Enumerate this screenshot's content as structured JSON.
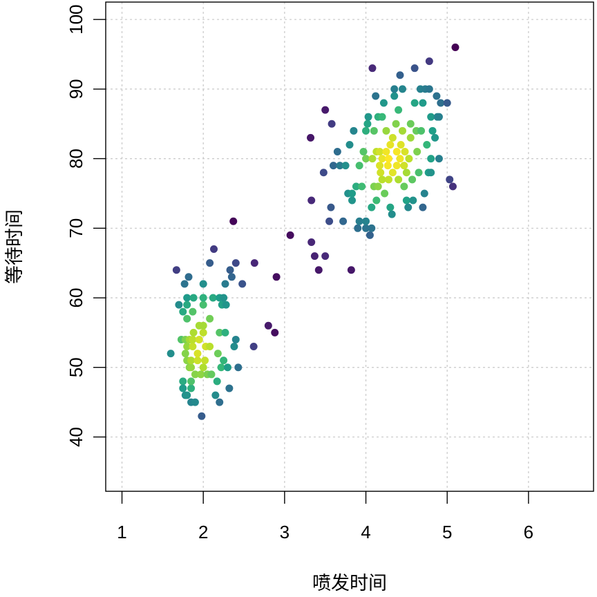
{
  "chart_data": {
    "type": "scatter",
    "title": "",
    "xlabel": "喷发时间",
    "ylabel": "等待时间",
    "xlim": [
      0.8,
      6.8
    ],
    "ylim": [
      32.2,
      102.5
    ],
    "xticks": [
      "1",
      "2",
      "3",
      "4",
      "5",
      "6"
    ],
    "yticks": [
      "40",
      "50",
      "60",
      "70",
      "80",
      "90",
      "100"
    ],
    "xtick_values": [
      1,
      2,
      3,
      4,
      5,
      6
    ],
    "ytick_values": [
      40,
      50,
      60,
      70,
      80,
      90,
      100
    ],
    "grid": true,
    "colormap": "viridis (by point density)",
    "colors": {
      "low_density": "#440154",
      "mid_density": "#21908C",
      "high_density": "#FDE725"
    },
    "points": [
      [
        1.6,
        52
      ],
      [
        1.67,
        64
      ],
      [
        1.7,
        59
      ],
      [
        1.73,
        54
      ],
      [
        1.75,
        48
      ],
      [
        1.75,
        47
      ],
      [
        1.75,
        58
      ],
      [
        1.77,
        62
      ],
      [
        1.78,
        46
      ],
      [
        1.78,
        54
      ],
      [
        1.78,
        52
      ],
      [
        1.8,
        60
      ],
      [
        1.8,
        59
      ],
      [
        1.8,
        57
      ],
      [
        1.8,
        53
      ],
      [
        1.8,
        51
      ],
      [
        1.8,
        46
      ],
      [
        1.82,
        63
      ],
      [
        1.83,
        54
      ],
      [
        1.83,
        50
      ],
      [
        1.85,
        45
      ],
      [
        1.85,
        47
      ],
      [
        1.85,
        48
      ],
      [
        1.85,
        50
      ],
      [
        1.85,
        51
      ],
      [
        1.87,
        53
      ],
      [
        1.87,
        54
      ],
      [
        1.87,
        58
      ],
      [
        1.88,
        55
      ],
      [
        1.88,
        60
      ],
      [
        1.9,
        45
      ],
      [
        1.9,
        49
      ],
      [
        1.93,
        51
      ],
      [
        1.93,
        52
      ],
      [
        1.95,
        54
      ],
      [
        1.95,
        56
      ],
      [
        1.97,
        49
      ],
      [
        1.98,
        43
      ],
      [
        2.0,
        50
      ],
      [
        2.0,
        55
      ],
      [
        2.0,
        56
      ],
      [
        2.0,
        59
      ],
      [
        2.0,
        62
      ],
      [
        2.0,
        60
      ],
      [
        2.02,
        51
      ],
      [
        2.03,
        53
      ],
      [
        2.05,
        49
      ],
      [
        2.08,
        53
      ],
      [
        2.08,
        57
      ],
      [
        2.08,
        65
      ],
      [
        2.1,
        49
      ],
      [
        2.12,
        60
      ],
      [
        2.13,
        67
      ],
      [
        2.15,
        46
      ],
      [
        2.17,
        48
      ],
      [
        2.18,
        52
      ],
      [
        2.2,
        45
      ],
      [
        2.2,
        55
      ],
      [
        2.2,
        60
      ],
      [
        2.22,
        50
      ],
      [
        2.23,
        59
      ],
      [
        2.25,
        51
      ],
      [
        2.25,
        60
      ],
      [
        2.27,
        55
      ],
      [
        2.27,
        62
      ],
      [
        2.28,
        59
      ],
      [
        2.3,
        50
      ],
      [
        2.32,
        47
      ],
      [
        2.33,
        64
      ],
      [
        2.35,
        63
      ],
      [
        2.37,
        71
      ],
      [
        2.38,
        53
      ],
      [
        2.4,
        54
      ],
      [
        2.4,
        65
      ],
      [
        2.43,
        50
      ],
      [
        2.48,
        62
      ],
      [
        2.62,
        53
      ],
      [
        2.63,
        65
      ],
      [
        2.8,
        56
      ],
      [
        2.88,
        55
      ],
      [
        2.9,
        63
      ],
      [
        3.07,
        69
      ],
      [
        3.32,
        83
      ],
      [
        3.33,
        68
      ],
      [
        3.33,
        74
      ],
      [
        3.37,
        66
      ],
      [
        3.42,
        64
      ],
      [
        3.48,
        78
      ],
      [
        3.5,
        66
      ],
      [
        3.5,
        87
      ],
      [
        3.55,
        71
      ],
      [
        3.57,
        73
      ],
      [
        3.58,
        85
      ],
      [
        3.6,
        79
      ],
      [
        3.65,
        81
      ],
      [
        3.68,
        79
      ],
      [
        3.72,
        71
      ],
      [
        3.75,
        79
      ],
      [
        3.78,
        75
      ],
      [
        3.8,
        82
      ],
      [
        3.82,
        64
      ],
      [
        3.83,
        74
      ],
      [
        3.83,
        75
      ],
      [
        3.85,
        84
      ],
      [
        3.88,
        76
      ],
      [
        3.9,
        70
      ],
      [
        3.92,
        71
      ],
      [
        3.92,
        79
      ],
      [
        3.95,
        76
      ],
      [
        3.97,
        81
      ],
      [
        4.0,
        70
      ],
      [
        4.0,
        71
      ],
      [
        4.0,
        80
      ],
      [
        4.0,
        84
      ],
      [
        4.02,
        85
      ],
      [
        4.03,
        86
      ],
      [
        4.05,
        69
      ],
      [
        4.07,
        70
      ],
      [
        4.07,
        73
      ],
      [
        4.08,
        93
      ],
      [
        4.08,
        80
      ],
      [
        4.1,
        76
      ],
      [
        4.1,
        84
      ],
      [
        4.12,
        89
      ],
      [
        4.13,
        74
      ],
      [
        4.13,
        81
      ],
      [
        4.15,
        86
      ],
      [
        4.15,
        76
      ],
      [
        4.17,
        79
      ],
      [
        4.17,
        81
      ],
      [
        4.18,
        78
      ],
      [
        4.2,
        86
      ],
      [
        4.2,
        80
      ],
      [
        4.2,
        77
      ],
      [
        4.22,
        88
      ],
      [
        4.23,
        75
      ],
      [
        4.25,
        84
      ],
      [
        4.25,
        81
      ],
      [
        4.27,
        79
      ],
      [
        4.28,
        77
      ],
      [
        4.28,
        80
      ],
      [
        4.3,
        73
      ],
      [
        4.3,
        82
      ],
      [
        4.32,
        72
      ],
      [
        4.33,
        83
      ],
      [
        4.33,
        78
      ],
      [
        4.35,
        89
      ],
      [
        4.35,
        90
      ],
      [
        4.37,
        85
      ],
      [
        4.38,
        81
      ],
      [
        4.38,
        79
      ],
      [
        4.4,
        87
      ],
      [
        4.4,
        77
      ],
      [
        4.42,
        92
      ],
      [
        4.42,
        80
      ],
      [
        4.43,
        82
      ],
      [
        4.45,
        90
      ],
      [
        4.45,
        84
      ],
      [
        4.47,
        79
      ],
      [
        4.47,
        76
      ],
      [
        4.48,
        81
      ],
      [
        4.5,
        74
      ],
      [
        4.5,
        78
      ],
      [
        4.52,
        73
      ],
      [
        4.53,
        80
      ],
      [
        4.55,
        85
      ],
      [
        4.55,
        83
      ],
      [
        4.57,
        77
      ],
      [
        4.58,
        74
      ],
      [
        4.6,
        93
      ],
      [
        4.6,
        88
      ],
      [
        4.62,
        84
      ],
      [
        4.63,
        81
      ],
      [
        4.65,
        78
      ],
      [
        4.67,
        90
      ],
      [
        4.68,
        84
      ],
      [
        4.7,
        88
      ],
      [
        4.7,
        73
      ],
      [
        4.72,
        75
      ],
      [
        4.73,
        90
      ],
      [
        4.75,
        82
      ],
      [
        4.77,
        78
      ],
      [
        4.78,
        94
      ],
      [
        4.78,
        90
      ],
      [
        4.8,
        86
      ],
      [
        4.8,
        80
      ],
      [
        4.8,
        78
      ],
      [
        4.82,
        84
      ],
      [
        4.85,
        83
      ],
      [
        4.87,
        89
      ],
      [
        4.88,
        86
      ],
      [
        4.9,
        80
      ],
      [
        4.9,
        86
      ],
      [
        4.92,
        88
      ],
      [
        5.0,
        88
      ],
      [
        5.03,
        77
      ],
      [
        5.07,
        76
      ],
      [
        5.1,
        96
      ]
    ]
  }
}
